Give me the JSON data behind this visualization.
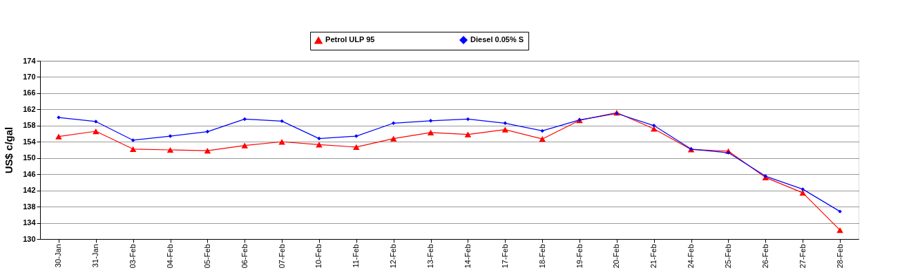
{
  "chart_data": {
    "type": "line",
    "ylabel": "US$ c/gal",
    "categories": [
      "30-Jan",
      "31-Jan",
      "03-Feb",
      "04-Feb",
      "05-Feb",
      "06-Feb",
      "07-Feb",
      "10-Feb",
      "11-Feb",
      "12-Feb",
      "13-Feb",
      "14-Feb",
      "17-Feb",
      "18-Feb",
      "19-Feb",
      "20-Feb",
      "21-Feb",
      "24-Feb",
      "25-Feb",
      "26-Feb",
      "27-Feb",
      "28-Feb"
    ],
    "series": [
      {
        "name": "Petrol ULP 95",
        "color": "#ff0000",
        "marker": "triangle",
        "values": [
          155.3,
          156.6,
          152.2,
          152.0,
          151.8,
          153.1,
          154.0,
          153.3,
          152.7,
          154.8,
          156.3,
          155.8,
          157.0,
          154.7,
          159.3,
          161.2,
          157.2,
          152.1,
          151.7,
          145.2,
          141.4,
          132.2
        ]
      },
      {
        "name": "Diesel 0.05% S",
        "color": "#0000ff",
        "marker": "diamond",
        "values": [
          160.0,
          159.0,
          154.4,
          155.4,
          156.5,
          159.6,
          159.1,
          154.8,
          155.4,
          158.6,
          159.2,
          159.6,
          158.6,
          156.7,
          159.4,
          161.0,
          158.0,
          152.2,
          151.3,
          145.5,
          142.3,
          136.8
        ]
      }
    ],
    "ylim": [
      130,
      174
    ],
    "yticks": [
      130,
      134,
      138,
      142,
      146,
      150,
      154,
      158,
      162,
      166,
      170,
      174
    ],
    "grid": "y",
    "legend": "top",
    "line_style": "solid"
  }
}
